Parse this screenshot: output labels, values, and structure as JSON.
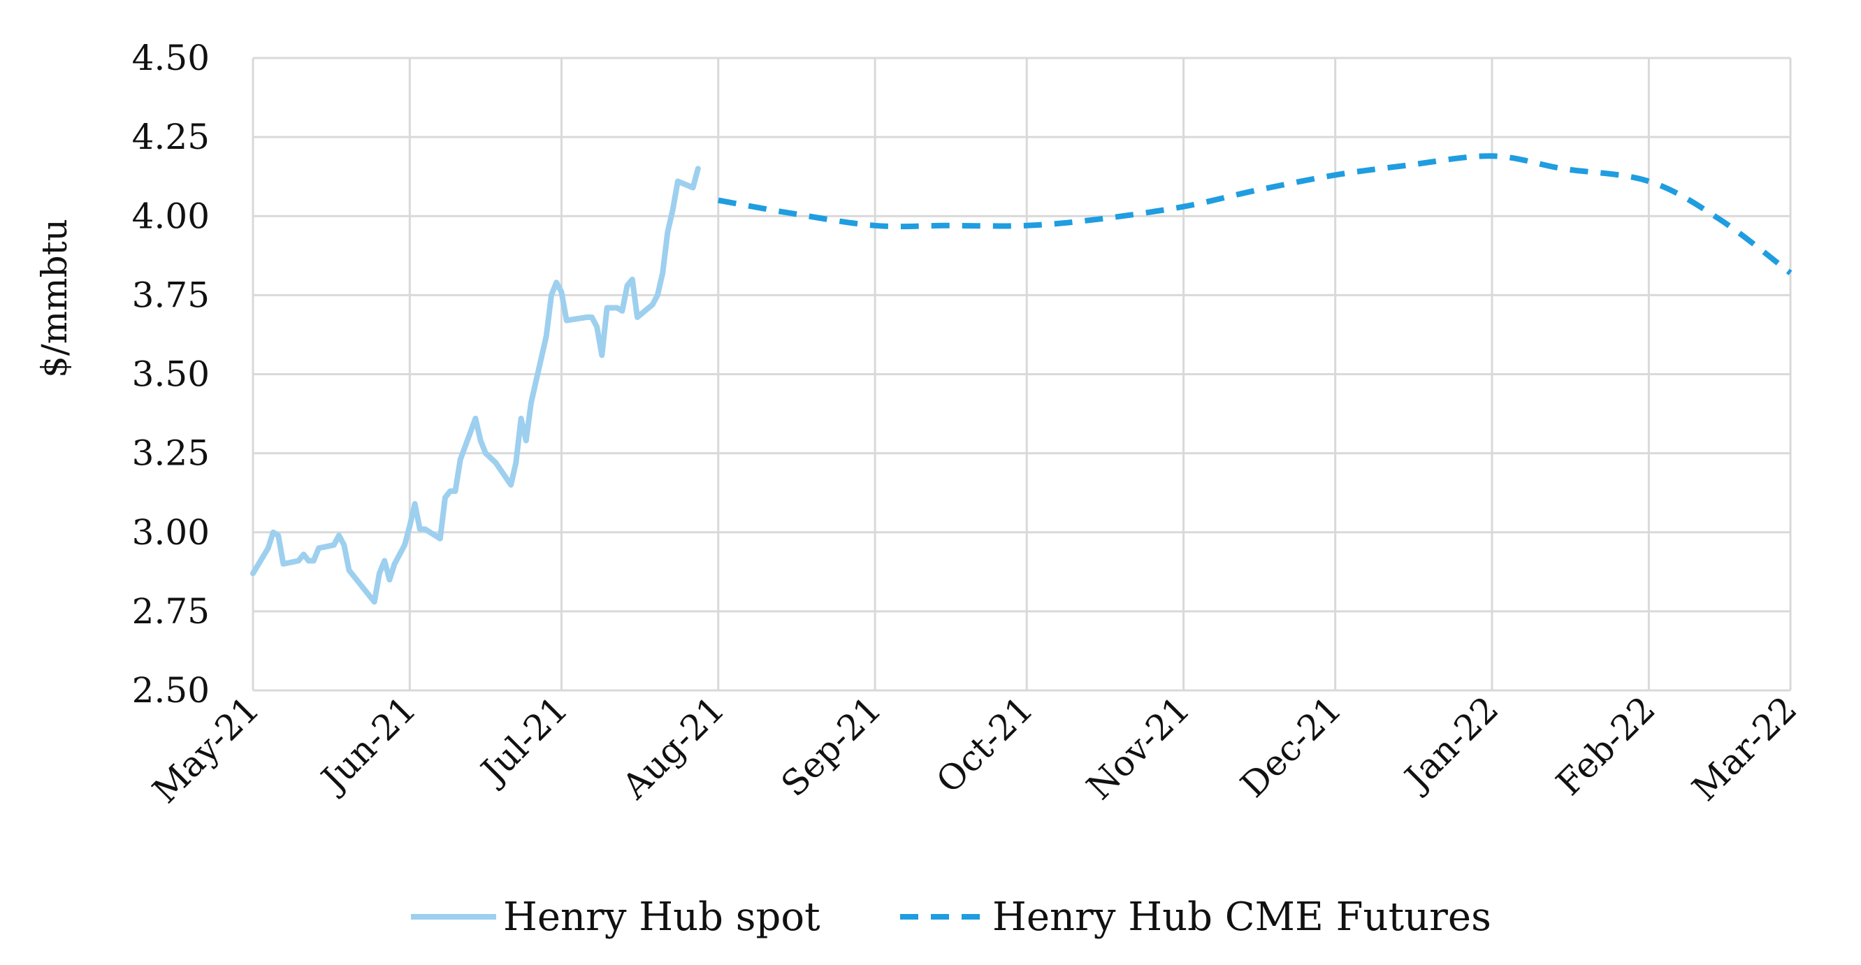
{
  "chart_data": {
    "type": "line",
    "title": "",
    "xlabel": "",
    "ylabel": "$/mmbtu",
    "ylim": [
      2.5,
      4.5
    ],
    "yticks": [
      "2.50",
      "2.75",
      "3.00",
      "3.25",
      "3.50",
      "3.75",
      "4.00",
      "4.25",
      "4.50"
    ],
    "xticks": [
      "May-21",
      "Jun-21",
      "Jul-21",
      "Aug-21",
      "Sep-21",
      "Oct-21",
      "Nov-21",
      "Dec-21",
      "Jan-22",
      "Feb-22",
      "Mar-22"
    ],
    "xlim": [
      "2021-05-01",
      "2022-03-01"
    ],
    "grid": true,
    "legend_position": "bottom",
    "colors": {
      "spot": "#9dcfef",
      "futures": "#1f9de0",
      "grid": "#d9d9d9"
    },
    "series": [
      {
        "name": "Henry Hub spot",
        "style": "solid",
        "points": [
          [
            "2021-05-01",
            2.87
          ],
          [
            "2021-05-04",
            2.95
          ],
          [
            "2021-05-05",
            3.0
          ],
          [
            "2021-05-06",
            2.99
          ],
          [
            "2021-05-07",
            2.9
          ],
          [
            "2021-05-10",
            2.91
          ],
          [
            "2021-05-11",
            2.93
          ],
          [
            "2021-05-12",
            2.91
          ],
          [
            "2021-05-13",
            2.91
          ],
          [
            "2021-05-14",
            2.95
          ],
          [
            "2021-05-17",
            2.96
          ],
          [
            "2021-05-18",
            2.99
          ],
          [
            "2021-05-19",
            2.96
          ],
          [
            "2021-05-20",
            2.88
          ],
          [
            "2021-05-24",
            2.8
          ],
          [
            "2021-05-25",
            2.78
          ],
          [
            "2021-05-26",
            2.87
          ],
          [
            "2021-05-27",
            2.91
          ],
          [
            "2021-05-28",
            2.85
          ],
          [
            "2021-05-29",
            2.9
          ],
          [
            "2021-05-31",
            2.96
          ],
          [
            "2021-06-01",
            3.02
          ],
          [
            "2021-06-02",
            3.09
          ],
          [
            "2021-06-03",
            3.01
          ],
          [
            "2021-06-04",
            3.01
          ],
          [
            "2021-06-07",
            2.98
          ],
          [
            "2021-06-08",
            3.11
          ],
          [
            "2021-06-09",
            3.13
          ],
          [
            "2021-06-10",
            3.13
          ],
          [
            "2021-06-11",
            3.23
          ],
          [
            "2021-06-14",
            3.36
          ],
          [
            "2021-06-15",
            3.29
          ],
          [
            "2021-06-16",
            3.25
          ],
          [
            "2021-06-18",
            3.22
          ],
          [
            "2021-06-21",
            3.15
          ],
          [
            "2021-06-22",
            3.22
          ],
          [
            "2021-06-23",
            3.36
          ],
          [
            "2021-06-24",
            3.29
          ],
          [
            "2021-06-25",
            3.41
          ],
          [
            "2021-06-28",
            3.62
          ],
          [
            "2021-06-29",
            3.75
          ],
          [
            "2021-06-30",
            3.79
          ],
          [
            "2021-07-01",
            3.76
          ],
          [
            "2021-07-02",
            3.67
          ],
          [
            "2021-07-06",
            3.68
          ],
          [
            "2021-07-07",
            3.68
          ],
          [
            "2021-07-08",
            3.65
          ],
          [
            "2021-07-09",
            3.56
          ],
          [
            "2021-07-10",
            3.71
          ],
          [
            "2021-07-12",
            3.71
          ],
          [
            "2021-07-13",
            3.7
          ],
          [
            "2021-07-14",
            3.78
          ],
          [
            "2021-07-15",
            3.8
          ],
          [
            "2021-07-16",
            3.68
          ],
          [
            "2021-07-19",
            3.72
          ],
          [
            "2021-07-20",
            3.75
          ],
          [
            "2021-07-21",
            3.82
          ],
          [
            "2021-07-22",
            3.95
          ],
          [
            "2021-07-23",
            4.02
          ],
          [
            "2021-07-24",
            4.11
          ],
          [
            "2021-07-27",
            4.09
          ],
          [
            "2021-07-28",
            4.15
          ]
        ]
      },
      {
        "name": "Henry Hub CME Futures",
        "style": "dashed",
        "points": [
          [
            "2021-08-01",
            4.05
          ],
          [
            "2021-08-15",
            4.01
          ],
          [
            "2021-09-01",
            3.97
          ],
          [
            "2021-09-15",
            3.97
          ],
          [
            "2021-10-01",
            3.97
          ],
          [
            "2021-10-15",
            3.99
          ],
          [
            "2021-11-01",
            4.03
          ],
          [
            "2021-11-15",
            4.08
          ],
          [
            "2021-12-01",
            4.13
          ],
          [
            "2021-12-15",
            4.16
          ],
          [
            "2022-01-01",
            4.19
          ],
          [
            "2022-01-15",
            4.15
          ],
          [
            "2022-02-01",
            4.11
          ],
          [
            "2022-02-15",
            3.99
          ],
          [
            "2022-03-01",
            3.82
          ]
        ]
      }
    ]
  }
}
